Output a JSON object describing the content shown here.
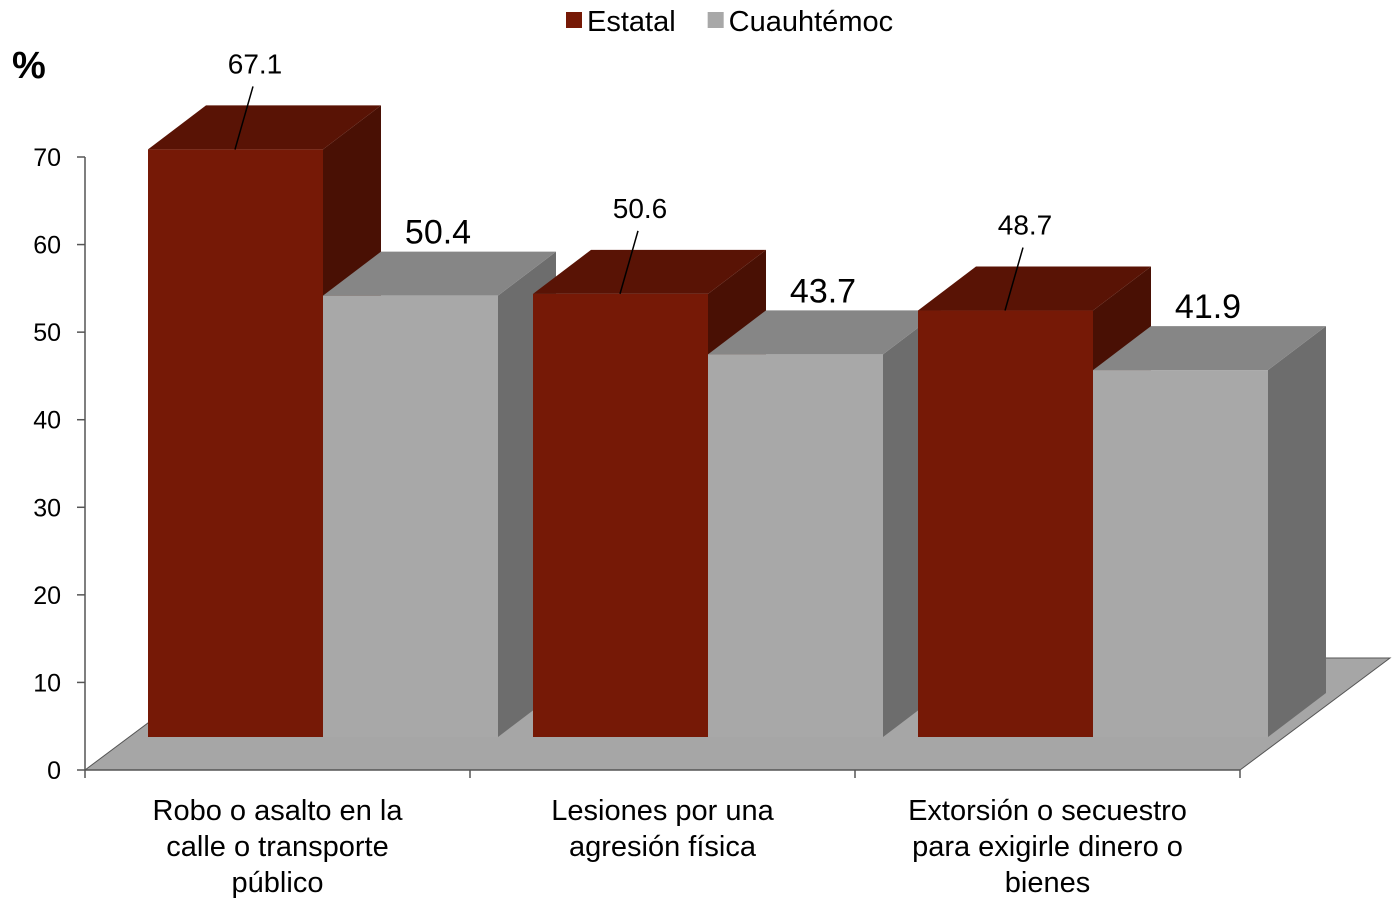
{
  "chart_data": {
    "type": "bar3d",
    "y_label": "%",
    "categories": [
      "Robo o asalto en la calle o transporte público",
      "Lesiones por una agresión física",
      "Extorsión o secuestro para exigirle dinero o bienes"
    ],
    "series": [
      {
        "name": "Estatal",
        "color": "#761906",
        "values": [
          67.1,
          50.6,
          48.7
        ]
      },
      {
        "name": "Cuauhtémoc",
        "color": "#a8a8a8",
        "values": [
          50.4,
          43.7,
          41.9
        ]
      }
    ],
    "ylim": [
      0,
      70
    ],
    "yticks": [
      0,
      10,
      20,
      30,
      40,
      50,
      60,
      70
    ],
    "legend": "top"
  }
}
